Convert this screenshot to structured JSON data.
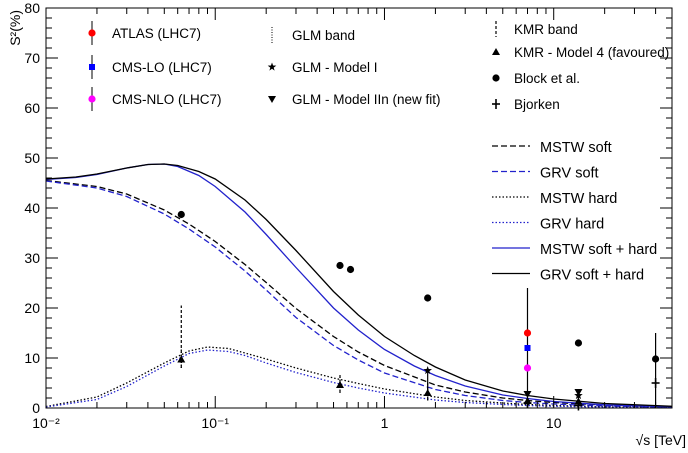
{
  "chart_data": {
    "type": "line",
    "title": "",
    "xlabel": "√s [TeV]",
    "ylabel": "S²(%)",
    "x_scale": "log",
    "xlim": [
      0.01,
      50
    ],
    "ylim": [
      0,
      80
    ],
    "x_ticks": [
      {
        "value": 0.01,
        "label": "10⁻²"
      },
      {
        "value": 0.1,
        "label": "10⁻¹"
      },
      {
        "value": 1,
        "label": "1"
      },
      {
        "value": 10,
        "label": "10"
      }
    ],
    "y_ticks": [
      0,
      10,
      20,
      30,
      40,
      50,
      60,
      70,
      80
    ],
    "curves": [
      {
        "name": "MSTW soft",
        "color": "#000000",
        "dash": "dashed",
        "x": [
          0.01,
          0.02,
          0.03,
          0.05,
          0.07,
          0.1,
          0.15,
          0.2,
          0.3,
          0.5,
          0.7,
          1,
          2,
          3,
          5,
          7,
          10,
          20,
          50
        ],
        "y": [
          45.5,
          44.3,
          42.8,
          39.6,
          36.8,
          33.3,
          28.7,
          25.1,
          19.9,
          14.3,
          11.2,
          8.5,
          4.6,
          3.2,
          2.0,
          1.5,
          1.1,
          0.6,
          0.2
        ]
      },
      {
        "name": "GRV soft",
        "color": "#2222cc",
        "dash": "dashed",
        "x": [
          0.01,
          0.02,
          0.03,
          0.05,
          0.07,
          0.1,
          0.15,
          0.2,
          0.3,
          0.5,
          0.7,
          1,
          2,
          3,
          5,
          7,
          10,
          20,
          50
        ],
        "y": [
          45.4,
          44.0,
          42.3,
          38.8,
          35.8,
          32.2,
          27.4,
          23.6,
          18.1,
          12.5,
          9.6,
          7.0,
          3.7,
          2.5,
          1.5,
          1.1,
          0.8,
          0.4,
          0.15
        ]
      },
      {
        "name": "MSTW hard",
        "color": "#000000",
        "dash": "dotted",
        "x": [
          0.01,
          0.02,
          0.03,
          0.05,
          0.07,
          0.09,
          0.12,
          0.15,
          0.2,
          0.3,
          0.5,
          0.7,
          1,
          2,
          3,
          5,
          7,
          10,
          20,
          50
        ],
        "y": [
          0.3,
          2.2,
          5.0,
          9.0,
          11.4,
          12.2,
          11.9,
          11.0,
          9.8,
          8.0,
          6.0,
          4.9,
          3.8,
          2.2,
          1.5,
          1.0,
          0.7,
          0.5,
          0.25,
          0.1
        ]
      },
      {
        "name": "GRV hard",
        "color": "#2222cc",
        "dash": "dotted",
        "x": [
          0.01,
          0.02,
          0.03,
          0.05,
          0.07,
          0.09,
          0.12,
          0.15,
          0.2,
          0.3,
          0.5,
          0.7,
          1,
          2,
          3,
          5,
          7,
          10,
          20,
          50
        ],
        "y": [
          0.2,
          1.7,
          4.3,
          8.4,
          10.9,
          11.6,
          11.3,
          10.5,
          9.0,
          7.1,
          5.1,
          4.0,
          3.0,
          1.6,
          1.1,
          0.7,
          0.5,
          0.35,
          0.18,
          0.07
        ]
      },
      {
        "name": "MSTW soft + hard",
        "color": "#2222cc",
        "dash": "solid",
        "x": [
          0.01,
          0.015,
          0.02,
          0.03,
          0.04,
          0.05,
          0.06,
          0.08,
          0.1,
          0.15,
          0.2,
          0.3,
          0.5,
          0.7,
          1,
          1.5,
          2,
          3,
          5,
          7,
          10,
          20,
          50
        ],
        "y": [
          45.7,
          46.1,
          46.7,
          48.0,
          48.7,
          48.8,
          48.3,
          46.5,
          44.3,
          39.2,
          34.7,
          28.1,
          20.0,
          15.6,
          11.7,
          8.4,
          6.5,
          4.4,
          2.6,
          1.9,
          1.3,
          0.65,
          0.25
        ]
      },
      {
        "name": "GRV soft + hard",
        "color": "#000000",
        "dash": "solid",
        "x": [
          0.01,
          0.015,
          0.02,
          0.03,
          0.04,
          0.05,
          0.06,
          0.08,
          0.1,
          0.15,
          0.2,
          0.3,
          0.5,
          0.7,
          1,
          1.5,
          2,
          3,
          5,
          7,
          10,
          20,
          50
        ],
        "y": [
          45.8,
          46.2,
          46.8,
          48.0,
          48.7,
          48.8,
          48.5,
          47.3,
          45.8,
          41.6,
          37.7,
          31.5,
          23.3,
          18.6,
          14.3,
          10.5,
          8.2,
          5.6,
          3.4,
          2.5,
          1.8,
          0.9,
          0.35
        ]
      }
    ],
    "markers": [
      {
        "name": "ATLAS (LHC7)",
        "symbol": "circle",
        "color": "#ff0000",
        "points": [
          {
            "x": 7,
            "y": 15.0,
            "err": [
              0,
              0
            ]
          }
        ]
      },
      {
        "name": "CMS-LO (LHC7)",
        "symbol": "square",
        "color": "#0000ff",
        "points": [
          {
            "x": 7,
            "y": 12.0,
            "err": [
              0,
              0
            ]
          }
        ]
      },
      {
        "name": "CMS-NLO (LHC7)",
        "symbol": "circle",
        "color": "#ff00ff",
        "points": [
          {
            "x": 7,
            "y": 8.0,
            "err": [
              0,
              0
            ]
          }
        ]
      },
      {
        "name": "GLM band",
        "symbol": "band-dotted",
        "color": "#000000",
        "points": [
          {
            "x": 0.063,
            "y": 10,
            "err": [
              2,
              2
            ]
          },
          {
            "x": 0.546,
            "y": 5,
            "err": [
              1.5,
              1.5
            ]
          },
          {
            "x": 1.8,
            "y": 3,
            "err": [
              1.5,
              1.5
            ]
          },
          {
            "x": 7,
            "y": 2,
            "err": [
              1.2,
              1.2
            ]
          },
          {
            "x": 14,
            "y": 1.5,
            "err": [
              1,
              1
            ]
          }
        ]
      },
      {
        "name": "GLM - Model I",
        "symbol": "star",
        "color": "#000000",
        "points": [
          {
            "x": 1.8,
            "y": 7.5,
            "err": [
              0,
              0
            ]
          },
          {
            "x": 14,
            "y": 2.5,
            "err": [
              0,
              0
            ]
          }
        ]
      },
      {
        "name": "GLM - Model IIn (new fit)",
        "symbol": "triangle-down",
        "color": "#000000",
        "points": [
          {
            "x": 7,
            "y": 2.8,
            "err": [
              0,
              0
            ]
          },
          {
            "x": 14,
            "y": 3.2,
            "err": [
              0,
              0
            ]
          }
        ]
      },
      {
        "name": "KMR band",
        "symbol": "band-dashed",
        "color": "#000000",
        "points": [
          {
            "x": 0.063,
            "y": 10,
            "err": [
              2,
              10.5
            ]
          },
          {
            "x": 0.546,
            "y": 5,
            "err": [
              2,
              2
            ]
          },
          {
            "x": 1.8,
            "y": 3.5,
            "err": [
              2,
              2
            ]
          },
          {
            "x": 7,
            "y": 1.5,
            "err": [
              1,
              1
            ]
          },
          {
            "x": 14,
            "y": 1.5,
            "err": [
              1,
              1
            ]
          }
        ]
      },
      {
        "name": "KMR - Model 4 (favoured)",
        "symbol": "triangle-up",
        "color": "#000000",
        "points": [
          {
            "x": 0.063,
            "y": 9.7,
            "err": [
              0,
              0
            ]
          },
          {
            "x": 0.546,
            "y": 4.6,
            "err": [
              0,
              0
            ]
          },
          {
            "x": 1.8,
            "y": 3.0,
            "err": [
              0,
              0
            ]
          },
          {
            "x": 7,
            "y": 1.4,
            "err": [
              0,
              0
            ]
          },
          {
            "x": 14,
            "y": 1.3,
            "err": [
              0,
              0
            ]
          }
        ]
      },
      {
        "name": "Block et al.",
        "symbol": "dot",
        "color": "#000000",
        "points": [
          {
            "x": 0.063,
            "y": 38.7,
            "err": [
              0,
              0
            ]
          },
          {
            "x": 0.546,
            "y": 28.5,
            "err": [
              0,
              0
            ]
          },
          {
            "x": 0.63,
            "y": 27.7,
            "err": [
              0,
              0
            ]
          },
          {
            "x": 1.8,
            "y": 22.0,
            "err": [
              0,
              0
            ]
          },
          {
            "x": 14,
            "y": 13.0,
            "err": [
              0,
              0
            ]
          },
          {
            "x": 40,
            "y": 9.8,
            "err": [
              0,
              0
            ]
          }
        ]
      },
      {
        "name": "Bjorken",
        "symbol": "cross",
        "color": "#000000",
        "points": [
          {
            "x": 7,
            "y": 1.0,
            "err": [
              0,
              0
            ]
          },
          {
            "x": 14,
            "y": 0.5,
            "err": [
              0,
              0
            ]
          },
          {
            "x": 40,
            "y": 5.0,
            "err": [
              0,
              0
            ]
          }
        ]
      }
    ],
    "error_bars": [
      {
        "x": 7,
        "lo": 0,
        "hi": 24
      },
      {
        "x": 40,
        "lo": 0,
        "hi": 15
      },
      {
        "x": 1.8,
        "lo": 2.5,
        "hi": 7.8
      }
    ],
    "legend_markers": {
      "placement": "top",
      "entries": [
        "ATLAS (LHC7)",
        "CMS-LO (LHC7)",
        "CMS-NLO (LHC7)",
        "GLM band",
        "GLM - Model I",
        "GLM - Model IIn (new fit)",
        "KMR band",
        "KMR - Model 4 (favoured)",
        "Block et al.",
        "Bjorken"
      ]
    },
    "legend_curves": {
      "placement": "right",
      "entries": [
        "MSTW soft",
        "GRV soft",
        "MSTW hard",
        "GRV hard",
        "MSTW soft + hard",
        "GRV soft + hard"
      ]
    }
  }
}
